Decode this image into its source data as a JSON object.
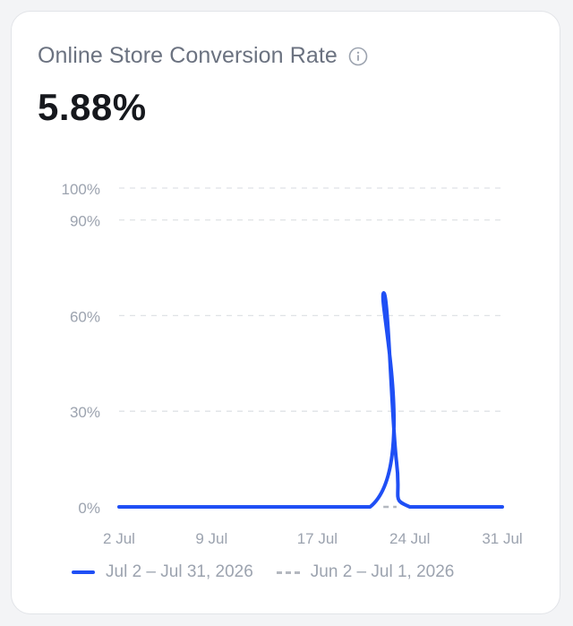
{
  "header": {
    "title": "Online Store Conversion Rate",
    "info_icon": "info-circle-icon",
    "metric_value": "5.88%"
  },
  "colors": {
    "current_series": "#1f4ff5",
    "previous_series": "#b4b8bf",
    "grid": "#dfe2e6",
    "tick_text": "#9ca3af"
  },
  "chart_data": {
    "type": "line",
    "title": "",
    "xlabel": "",
    "ylabel": "",
    "ylim": [
      0,
      100
    ],
    "xlim": [
      "2026-07-02",
      "2026-07-31"
    ],
    "y_ticks": [
      {
        "value": 0,
        "label": "0%"
      },
      {
        "value": 30,
        "label": "30%"
      },
      {
        "value": 60,
        "label": "60%"
      },
      {
        "value": 90,
        "label": "90%"
      },
      {
        "value": 100,
        "label": "100%"
      }
    ],
    "x_ticks": [
      {
        "date": "2026-07-02",
        "label": "2 Jul"
      },
      {
        "date": "2026-07-09",
        "label": "9 Jul"
      },
      {
        "date": "2026-07-17",
        "label": "17 Jul"
      },
      {
        "date": "2026-07-24",
        "label": "24 Jul"
      },
      {
        "date": "2026-07-31",
        "label": "31 Jul"
      }
    ],
    "grid": true,
    "legend_position": "bottom",
    "series": [
      {
        "name": "Jul 2 – Jul 31, 2026",
        "style": "solid",
        "points": [
          {
            "x": "2026-07-02",
            "y": 0
          },
          {
            "x": "2026-07-21",
            "y": 0
          },
          {
            "x": "2026-07-22",
            "y": 67
          },
          {
            "x": "2026-07-23",
            "y": 14
          },
          {
            "x": "2026-07-24",
            "y": 0
          },
          {
            "x": "2026-07-31",
            "y": 0
          }
        ]
      },
      {
        "name": "Jun 2 – Jul 1, 2026",
        "style": "dashed",
        "points": [
          {
            "x": "2026-07-22",
            "y": 0
          },
          {
            "x": "2026-07-23",
            "y": 0
          }
        ]
      }
    ]
  }
}
